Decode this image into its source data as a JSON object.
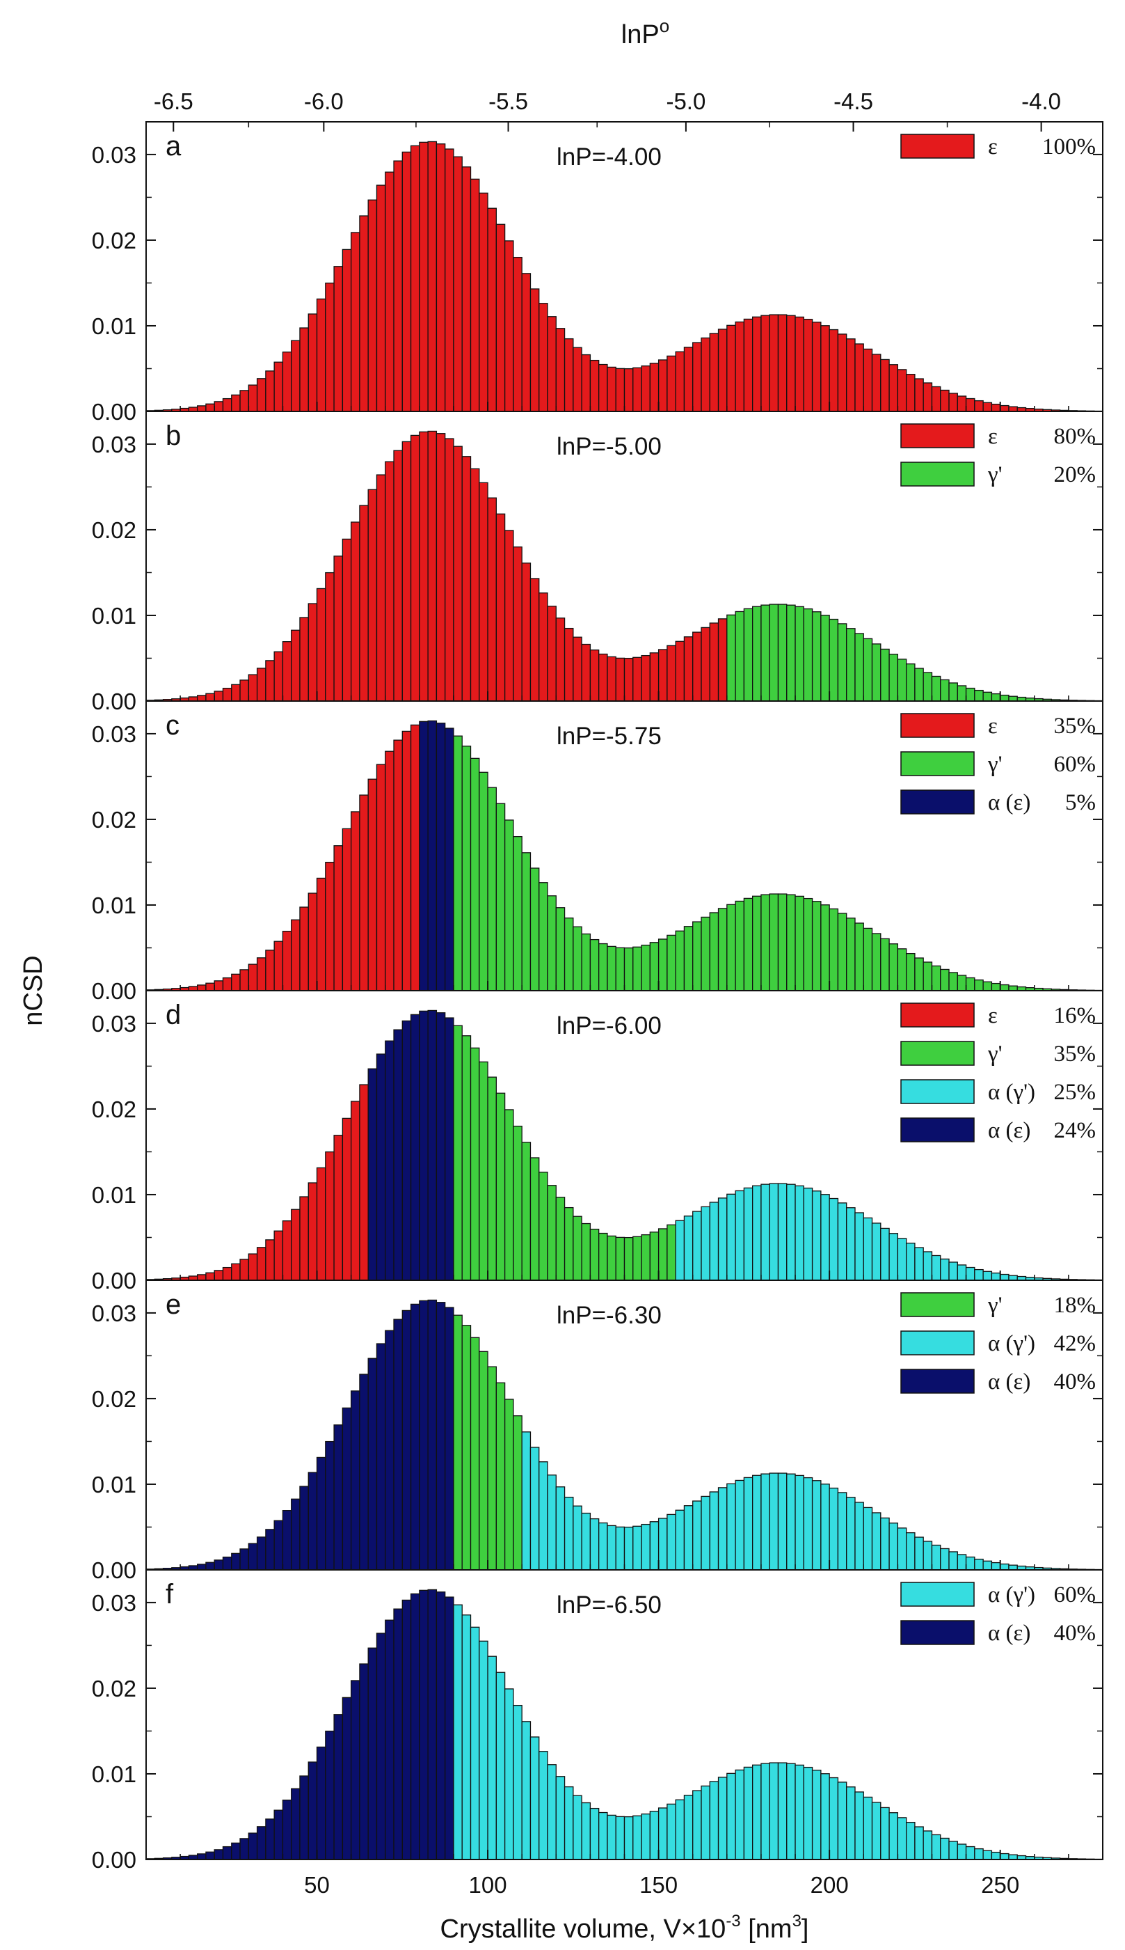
{
  "chart_data": {
    "type": "bar",
    "title": "",
    "xlabel": "Crystallite volume, V×10",
    "xlabel_exp": "-3",
    "xlabel_unit_open": " [nm",
    "xlabel_unit_exp": "3",
    "xlabel_unit_close": "]",
    "ylabel": "nCSD",
    "top_axis_label": "lnP",
    "top_axis_label_sup": "o",
    "xlim": [
      0,
      280
    ],
    "ylim": [
      0,
      0.033
    ],
    "bar_width": 2.5,
    "x_ticks": [
      {
        "value": 50,
        "label": "50"
      },
      {
        "value": 100,
        "label": "100"
      },
      {
        "value": 150,
        "label": "150"
      },
      {
        "value": 200,
        "label": "200"
      },
      {
        "value": 250,
        "label": "250"
      }
    ],
    "top_ticks": [
      {
        "x": 8,
        "label": "-6.5"
      },
      {
        "x": 52,
        "label": "-6.0"
      },
      {
        "x": 106,
        "label": "-5.5"
      },
      {
        "x": 158,
        "label": "-5.0"
      },
      {
        "x": 207,
        "label": "-4.5"
      },
      {
        "x": 262,
        "label": "-4.0"
      }
    ],
    "y_ticks": [
      {
        "value": 0.0,
        "label": "0.00"
      },
      {
        "value": 0.01,
        "label": "0.01"
      },
      {
        "value": 0.02,
        "label": "0.02"
      },
      {
        "value": 0.03,
        "label": "0.03"
      }
    ],
    "distribution": [
      {
        "center": 83,
        "amplitude": 0.0315,
        "sigma": 24
      },
      {
        "center": 185,
        "amplitude": 0.0113,
        "sigma": 28
      }
    ],
    "phase_colors": {
      "eps": "#e41a1c",
      "gamma": "#3fcf3f",
      "alpha_gamma": "#36dde0",
      "alpha_eps": "#0a0f6b"
    },
    "panels": [
      {
        "letter": "a",
        "annotation": "lnP=-4.00",
        "segments": [
          {
            "phase": "eps",
            "from": 0,
            "to": 280
          }
        ],
        "legend": [
          {
            "phase": "eps",
            "symbol": "ε",
            "percent": "100%"
          }
        ]
      },
      {
        "letter": "b",
        "annotation": "lnP=-5.00",
        "segments": [
          {
            "phase": "eps",
            "from": 0,
            "to": 170
          },
          {
            "phase": "gamma",
            "from": 170,
            "to": 280
          }
        ],
        "legend": [
          {
            "phase": "eps",
            "symbol": "ε",
            "percent": "80%"
          },
          {
            "phase": "gamma",
            "symbol": "γ'",
            "percent": "20%"
          }
        ]
      },
      {
        "letter": "c",
        "annotation": "lnP=-5.75",
        "segments": [
          {
            "phase": "eps",
            "from": 0,
            "to": 81
          },
          {
            "phase": "alpha_eps",
            "from": 81,
            "to": 90
          },
          {
            "phase": "gamma",
            "from": 90,
            "to": 280
          }
        ],
        "legend": [
          {
            "phase": "eps",
            "symbol": "ε",
            "percent": "35%"
          },
          {
            "phase": "gamma",
            "symbol": "γ'",
            "percent": "60%"
          },
          {
            "phase": "alpha_eps",
            "symbol": "α (ε)",
            "percent": "5%"
          }
        ]
      },
      {
        "letter": "d",
        "annotation": "lnP=-6.00",
        "segments": [
          {
            "phase": "eps",
            "from": 0,
            "to": 65
          },
          {
            "phase": "alpha_eps",
            "from": 65,
            "to": 90
          },
          {
            "phase": "gamma",
            "from": 90,
            "to": 155
          },
          {
            "phase": "alpha_gamma",
            "from": 155,
            "to": 280
          }
        ],
        "legend": [
          {
            "phase": "eps",
            "symbol": "ε",
            "percent": "16%"
          },
          {
            "phase": "gamma",
            "symbol": "γ'",
            "percent": "35%"
          },
          {
            "phase": "alpha_gamma",
            "symbol": "α (γ')",
            "percent": "25%"
          },
          {
            "phase": "alpha_eps",
            "symbol": "α (ε)",
            "percent": "24%"
          }
        ]
      },
      {
        "letter": "e",
        "annotation": "lnP=-6.30",
        "segments": [
          {
            "phase": "alpha_eps",
            "from": 0,
            "to": 90
          },
          {
            "phase": "gamma",
            "from": 90,
            "to": 110
          },
          {
            "phase": "alpha_gamma",
            "from": 110,
            "to": 280
          }
        ],
        "legend": [
          {
            "phase": "gamma",
            "symbol": "γ'",
            "percent": "18%"
          },
          {
            "phase": "alpha_gamma",
            "symbol": "α (γ')",
            "percent": "42%"
          },
          {
            "phase": "alpha_eps",
            "symbol": "α (ε)",
            "percent": "40%"
          }
        ]
      },
      {
        "letter": "f",
        "annotation": "lnP=-6.50",
        "segments": [
          {
            "phase": "alpha_eps",
            "from": 0,
            "to": 90
          },
          {
            "phase": "alpha_gamma",
            "from": 90,
            "to": 280
          }
        ],
        "legend": [
          {
            "phase": "alpha_gamma",
            "symbol": "α (γ')",
            "percent": "60%"
          },
          {
            "phase": "alpha_eps",
            "symbol": "α (ε)",
            "percent": "40%"
          }
        ]
      }
    ]
  }
}
